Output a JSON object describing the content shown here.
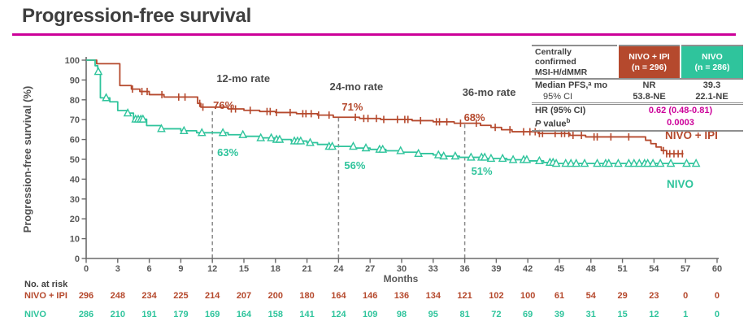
{
  "title": {
    "text": "Progression-free survival"
  },
  "colors": {
    "accent_magenta": "#cc0099",
    "nivo_ipi_red": "#b5492d",
    "nivo_green": "#2fc49c",
    "axis_gray": "#595959",
    "text_dark": "#3f3f3f"
  },
  "stats_table": {
    "header": {
      "label_line1": "Centrally confirmed",
      "label_line2": "MSI-H/dMMR",
      "arm1_line1": "NIVO + IPI",
      "arm1_line2": "(n = 296)",
      "arm2_line1": "NIVO",
      "arm2_line2": "(n = 286)"
    },
    "rows": [
      {
        "label": "Median PFS,ᵃ mo",
        "v1": "NR",
        "v2": "39.3"
      },
      {
        "label": "95% CI",
        "v1": "53.8-NE",
        "v2": "22.1-NE"
      }
    ],
    "hr_row": {
      "label": "HR (95% CI)",
      "value": "0.62 (0.48-0.81)"
    },
    "p_row": {
      "label_italic": "P",
      "label_rest": " value",
      "label_sup": "b",
      "value": "0.0003"
    }
  },
  "chart_data": {
    "type": "line",
    "subtype": "kaplan-meier-step",
    "title": "Progression-free survival",
    "xlabel": "Months",
    "ylabel": "Progression-free survival (%)",
    "xlim": [
      0,
      60
    ],
    "ylim": [
      0,
      100
    ],
    "xticks": [
      0,
      3,
      6,
      9,
      12,
      15,
      18,
      21,
      24,
      27,
      30,
      33,
      36,
      39,
      42,
      45,
      48,
      51,
      54,
      57,
      60
    ],
    "yticks": [
      0,
      10,
      20,
      30,
      40,
      50,
      60,
      70,
      80,
      90,
      100
    ],
    "grid": false,
    "series": [
      {
        "name": "NIVO + IPI",
        "color": "#b5492d",
        "censor_marker": "tick",
        "steps": [
          [
            0,
            100
          ],
          [
            1.0,
            98.2
          ],
          [
            3.2,
            87.2
          ],
          [
            4.3,
            85.4
          ],
          [
            5.1,
            84.2
          ],
          [
            6.0,
            82.6
          ],
          [
            7.4,
            81.4
          ],
          [
            10.6,
            78.2
          ],
          [
            10.9,
            76.3
          ],
          [
            13.5,
            75.4
          ],
          [
            15,
            74.7
          ],
          [
            16.5,
            74.1
          ],
          [
            18,
            73.6
          ],
          [
            20,
            73.0
          ],
          [
            22,
            72.3
          ],
          [
            23.5,
            71.2
          ],
          [
            26,
            70.6
          ],
          [
            28,
            70.1
          ],
          [
            31,
            69.5
          ],
          [
            33,
            68.9
          ],
          [
            35,
            68.2
          ],
          [
            37.5,
            67.1
          ],
          [
            38.5,
            66.1
          ],
          [
            39.5,
            64.9
          ],
          [
            40.5,
            63.9
          ],
          [
            43,
            63.0
          ],
          [
            46,
            62.1
          ],
          [
            47.5,
            61.3
          ],
          [
            53.2,
            59.6
          ],
          [
            53.7,
            57.9
          ],
          [
            54.2,
            56.2
          ],
          [
            54.7,
            54.4
          ],
          [
            55.2,
            52.8
          ],
          [
            56.8,
            52.8
          ]
        ],
        "censor_months": [
          4.4,
          5.3,
          5.8,
          7.2,
          8.8,
          9.4,
          10.8,
          11.1,
          13.8,
          14.2,
          15.6,
          17.2,
          17.5,
          18.1,
          19.4,
          20.6,
          20.9,
          21.4,
          22.1,
          23.1,
          25.6,
          26.4,
          26.8,
          27.6,
          28.3,
          29.6,
          30.3,
          30.6,
          31.8,
          33.3,
          33.6,
          34.3,
          35.6,
          37.1,
          38.9,
          40.3,
          41.6,
          42.2,
          42.7,
          43.1,
          43.4,
          44.6,
          45.2,
          45.5,
          45.9,
          46.3,
          47.1,
          48.3,
          48.6,
          49.9,
          51.6,
          54.9,
          55.2,
          55.5,
          55.9,
          56.3,
          56.7
        ]
      },
      {
        "name": "NIVO",
        "color": "#2fc49c",
        "censor_marker": "triangle",
        "steps": [
          [
            0,
            100
          ],
          [
            0.85,
            97.2
          ],
          [
            1.1,
            94.2
          ],
          [
            1.35,
            81.0
          ],
          [
            2.25,
            79.0
          ],
          [
            3.0,
            74.6
          ],
          [
            3.9,
            73.3
          ],
          [
            4.5,
            70.2
          ],
          [
            5.75,
            67.0
          ],
          [
            7.1,
            65.4
          ],
          [
            9.0,
            64.4
          ],
          [
            10.5,
            63.4
          ],
          [
            13.5,
            62.4
          ],
          [
            15,
            61.6
          ],
          [
            16.5,
            60.8
          ],
          [
            18,
            60.0
          ],
          [
            19.5,
            59.2
          ],
          [
            21,
            58.4
          ],
          [
            22,
            57.5
          ],
          [
            23,
            56.5
          ],
          [
            25.5,
            55.7
          ],
          [
            27,
            55.0
          ],
          [
            28.5,
            54.3
          ],
          [
            30,
            53.6
          ],
          [
            31.5,
            52.9
          ],
          [
            33,
            52.2
          ],
          [
            34,
            51.6
          ],
          [
            35.5,
            51.0
          ],
          [
            38,
            50.4
          ],
          [
            40,
            49.8
          ],
          [
            42,
            49.2
          ],
          [
            43.5,
            48.4
          ],
          [
            44.5,
            47.9
          ],
          [
            58.2,
            47.9
          ]
        ],
        "censor_months": [
          1.15,
          1.9,
          3.95,
          4.7,
          4.95,
          5.2,
          5.4,
          7.15,
          9.3,
          11.0,
          13.0,
          14.9,
          16.6,
          17.6,
          18.1,
          18.4,
          19.8,
          20.1,
          20.4,
          21.3,
          23.1,
          23.4,
          25.4,
          26.6,
          27.9,
          28.2,
          29.9,
          31.6,
          33.5,
          34.0,
          35.1,
          36.6,
          37.6,
          37.9,
          38.5,
          39.6,
          40.6,
          41.6,
          41.9,
          43.1,
          44.1,
          44.4,
          44.7,
          45.6,
          46.1,
          46.6,
          47.4,
          48.6,
          49.4,
          49.7,
          50.6,
          51.6,
          52.1,
          52.6,
          53.1,
          53.4,
          53.9,
          54.6,
          55.6,
          57.1,
          58.0
        ]
      }
    ],
    "milestones": [
      {
        "month": 12,
        "title": "12-mo rate",
        "rate_nivo_ipi": "76%",
        "rate_nivo": "63%",
        "rate_nivo_ipi_value": 76,
        "rate_nivo_value": 63
      },
      {
        "month": 24,
        "title": "24-mo rate",
        "rate_nivo_ipi": "71%",
        "rate_nivo": "56%",
        "rate_nivo_ipi_value": 71,
        "rate_nivo_value": 56
      },
      {
        "month": 36,
        "title": "36-mo rate",
        "rate_nivo_ipi": "68%",
        "rate_nivo": "51%",
        "rate_nivo_ipi_value": 68,
        "rate_nivo_value": 51
      }
    ],
    "risk_table": {
      "title": "No. at risk",
      "months": [
        0,
        3,
        6,
        9,
        12,
        15,
        18,
        21,
        24,
        27,
        30,
        33,
        36,
        39,
        42,
        45,
        48,
        51,
        54,
        57,
        60
      ],
      "rows": [
        {
          "name": "NIVO + IPI",
          "counts": [
            296,
            248,
            234,
            225,
            214,
            207,
            200,
            180,
            164,
            146,
            136,
            134,
            121,
            102,
            100,
            61,
            54,
            29,
            23,
            0,
            0
          ]
        },
        {
          "name": "NIVO",
          "counts": [
            286,
            210,
            191,
            179,
            169,
            164,
            158,
            141,
            124,
            109,
            98,
            95,
            81,
            72,
            69,
            39,
            31,
            15,
            12,
            1,
            0
          ]
        }
      ]
    }
  }
}
